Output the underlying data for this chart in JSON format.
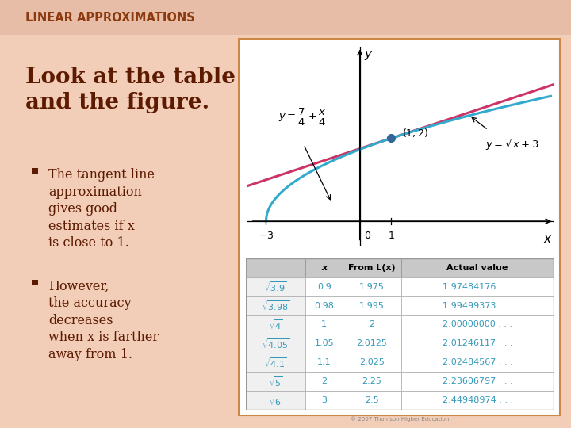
{
  "slide_bg": "#f2cdb8",
  "title": "LINEAR APPROXIMATIONS",
  "title_color": "#8B3A0F",
  "title_fontsize": 10.5,
  "title_bar_color": "#e8bda8",
  "heading": "Look at the table\nand the figure.",
  "heading_color": "#5C1A00",
  "heading_fontsize": 20,
  "bullet_color": "#5C1A00",
  "bullet_fontsize": 11.5,
  "bullets": [
    "The tangent line\napproximation\ngives good\nestimates if x\nis close to 1.",
    "However,\nthe accuracy\ndecreases\nwhen x is farther\naway from 1."
  ],
  "panel_bg": "#ffffff",
  "panel_border": "#cc8844",
  "graph_bg": "#ffffff",
  "tangent_color": "#cc3366",
  "curve_color": "#33aacc",
  "dot_color": "#336699",
  "table_text_color": "#3399bb",
  "table_header_bg": "#cccccc",
  "table_col1_bg": "#ffffff",
  "table_rows": [
    [
      "3.9",
      "0.9",
      "1.975",
      "1.97484176 . . ."
    ],
    [
      "3.98",
      "0.98",
      "1.995",
      "1.99499373 . . ."
    ],
    [
      "4",
      "1",
      "2",
      "2.00000000 . . ."
    ],
    [
      "4.05",
      "1.05",
      "2.0125",
      "2.01246117 . . ."
    ],
    [
      "4.1",
      "1.1",
      "2.025",
      "2.02484567 . . ."
    ],
    [
      "5",
      "2",
      "2.25",
      "2.23606797 . . ."
    ],
    [
      "6",
      "3",
      "2.5",
      "2.44948974 . . ."
    ]
  ],
  "table_headers": [
    "",
    "x",
    "From L(x)",
    "Actual value"
  ],
  "copyright": "© 2007 Thomson Higher Education"
}
